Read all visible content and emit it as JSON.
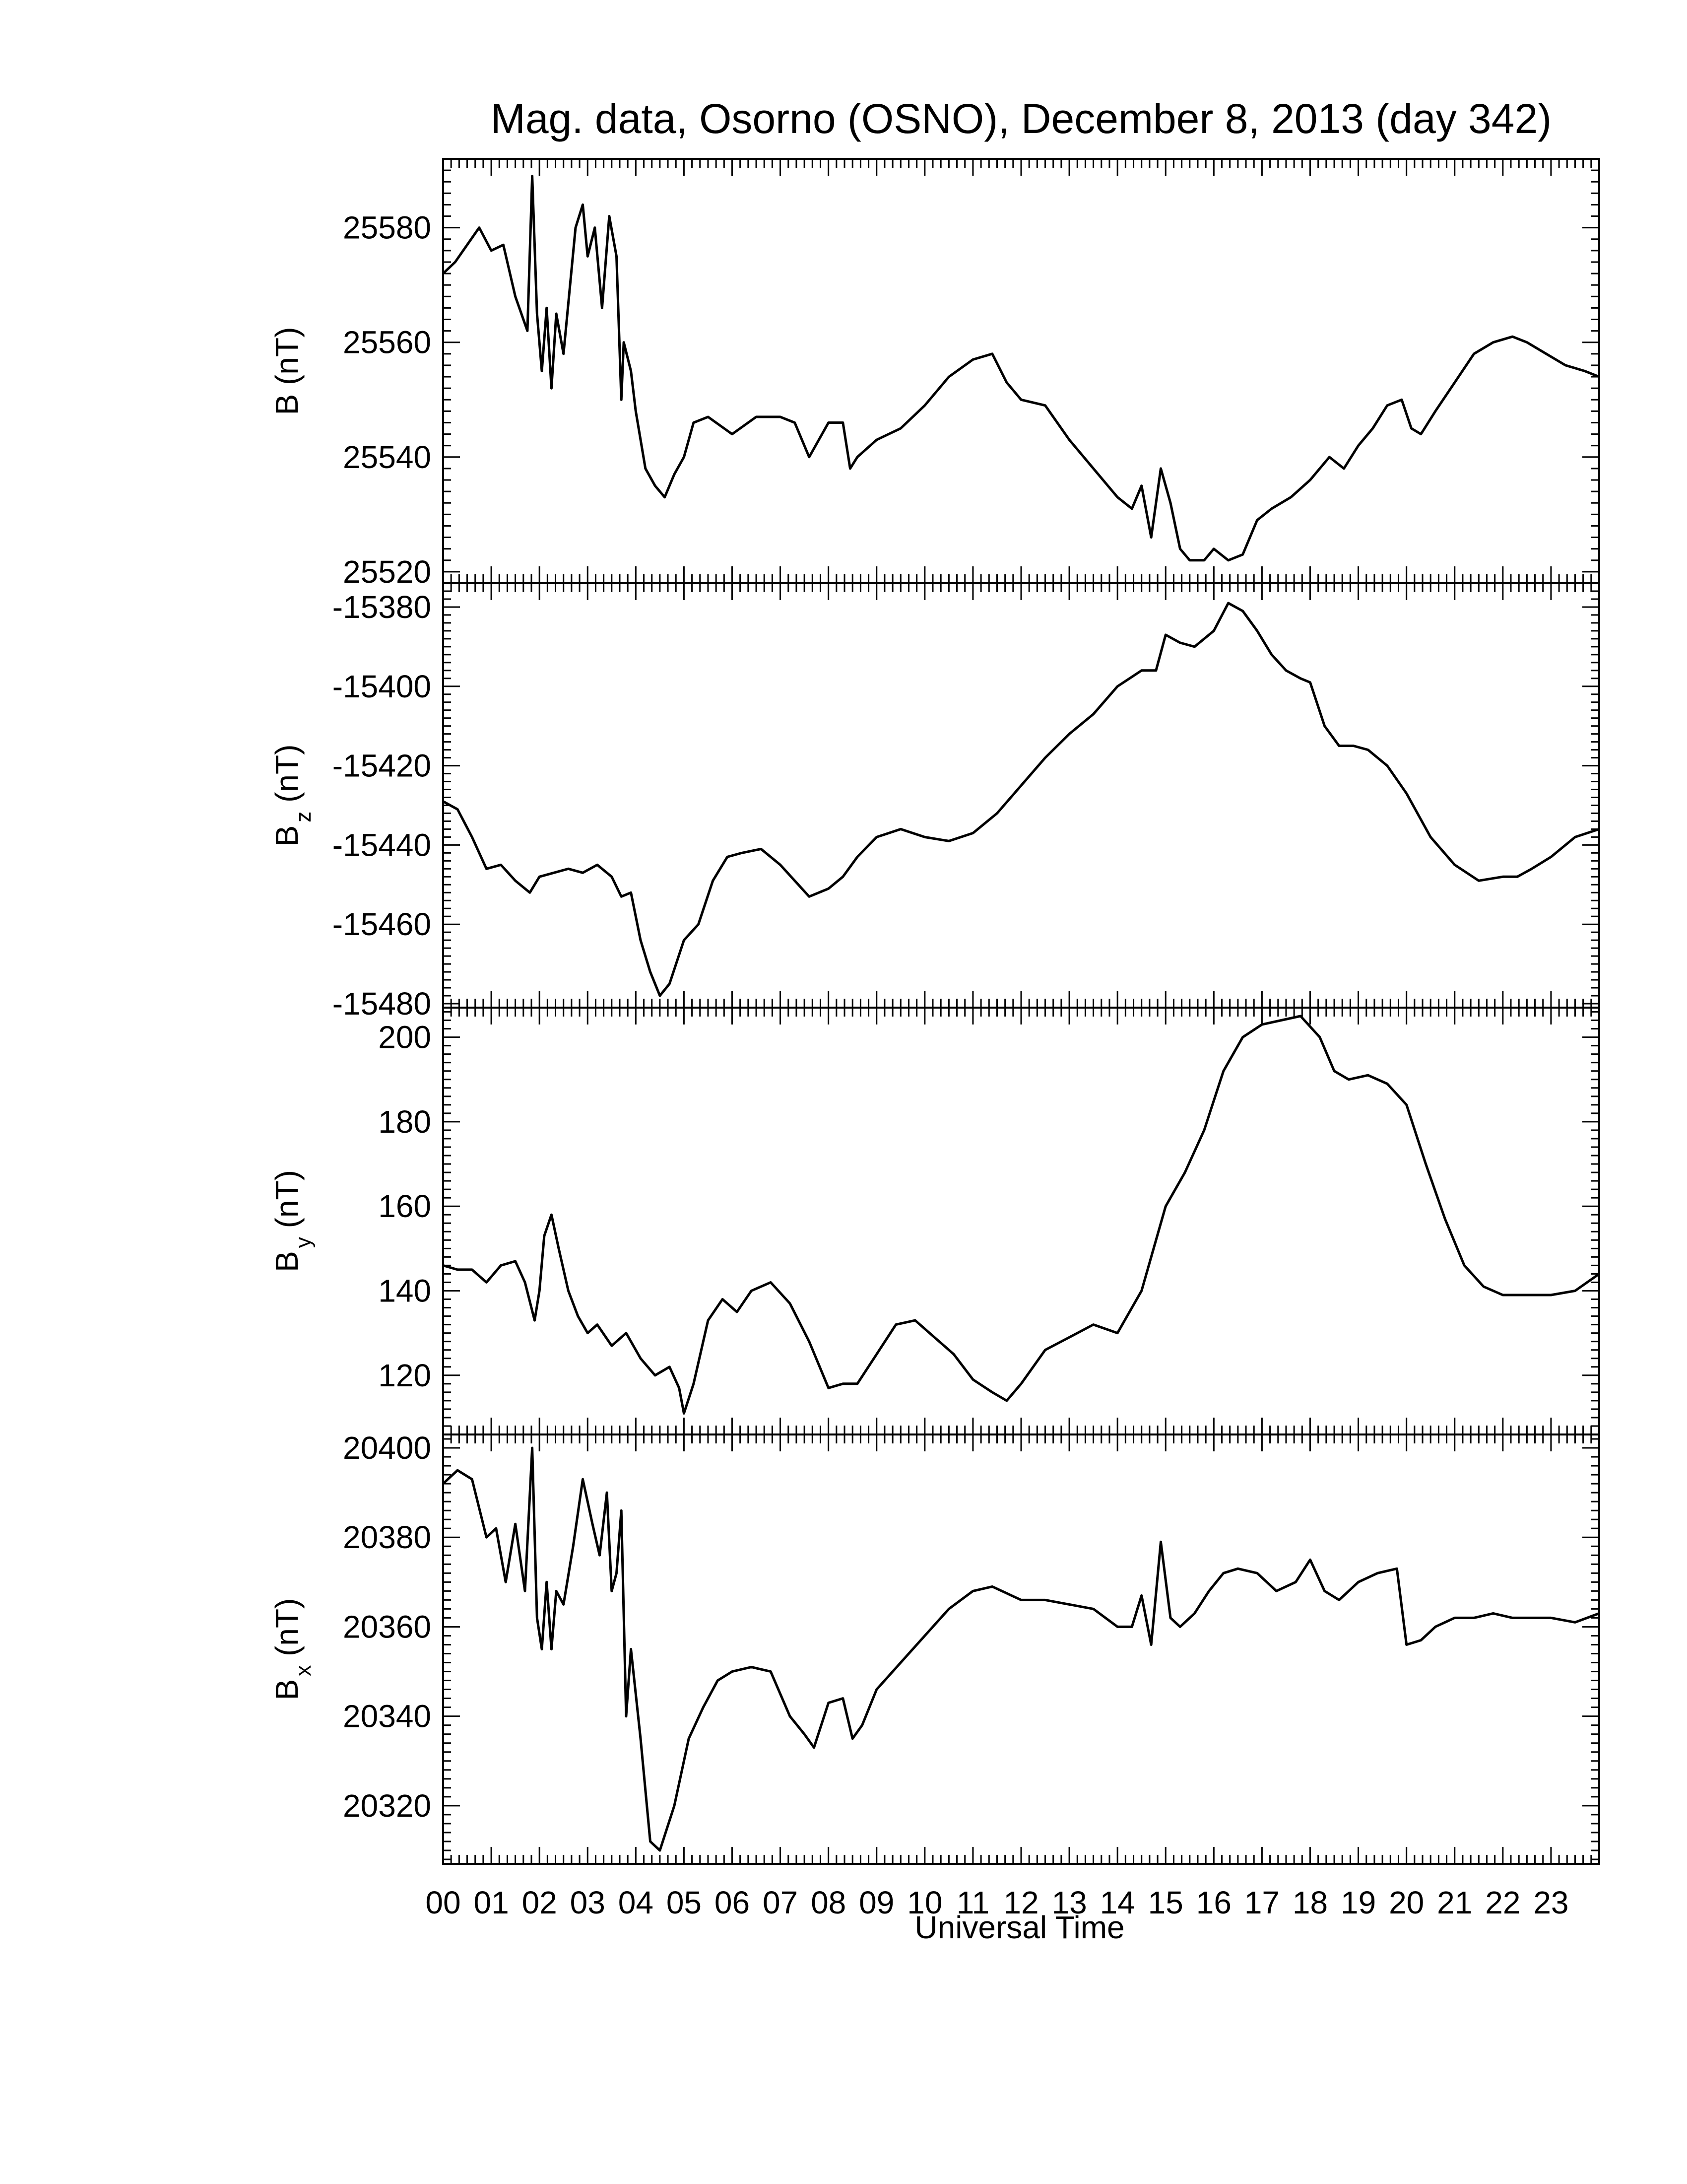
{
  "title": "Mag. data, Osorno (OSNO), December 8, 2013 (day 342)",
  "xaxis": {
    "label": "Universal Time",
    "tick_labels": [
      "00",
      "01",
      "02",
      "03",
      "04",
      "05",
      "06",
      "07",
      "08",
      "09",
      "10",
      "11",
      "12",
      "13",
      "14",
      "15",
      "16",
      "17",
      "18",
      "19",
      "20",
      "21",
      "22",
      "23"
    ]
  },
  "chart_data": [
    {
      "type": "line",
      "panel": "B",
      "ylabel_main": "B (nT)",
      "ylabel_sub": "",
      "ylim": [
        25518,
        25592
      ],
      "yticks": [
        25520,
        25540,
        25560,
        25580
      ],
      "x_unit": "hours UT",
      "xlim": [
        0,
        24
      ],
      "x": [
        0,
        0.25,
        0.5,
        0.75,
        1.0,
        1.25,
        1.5,
        1.75,
        1.85,
        1.95,
        2.05,
        2.15,
        2.25,
        2.35,
        2.5,
        2.75,
        2.9,
        3.0,
        3.15,
        3.3,
        3.45,
        3.6,
        3.7,
        3.75,
        3.9,
        4.0,
        4.2,
        4.4,
        4.6,
        4.8,
        5.0,
        5.2,
        5.5,
        6.0,
        6.5,
        7.0,
        7.3,
        7.6,
        8.0,
        8.3,
        8.45,
        8.6,
        9.0,
        9.5,
        10.0,
        10.5,
        11.0,
        11.4,
        11.7,
        12.0,
        12.5,
        13.0,
        13.5,
        14.0,
        14.3,
        14.5,
        14.7,
        14.9,
        15.1,
        15.3,
        15.5,
        15.8,
        16.0,
        16.3,
        16.6,
        16.9,
        17.2,
        17.6,
        18.0,
        18.4,
        18.7,
        19.0,
        19.3,
        19.6,
        19.9,
        20.1,
        20.3,
        20.6,
        21.0,
        21.4,
        21.8,
        22.2,
        22.5,
        22.9,
        23.3,
        23.7,
        24.0
      ],
      "y": [
        25572,
        25574,
        25577,
        25580,
        25576,
        25577,
        25568,
        25562,
        25589,
        25565,
        25555,
        25566,
        25552,
        25565,
        25558,
        25580,
        25584,
        25575,
        25580,
        25566,
        25582,
        25575,
        25550,
        25560,
        25555,
        25548,
        25538,
        25535,
        25533,
        25537,
        25540,
        25546,
        25547,
        25544,
        25547,
        25547,
        25546,
        25540,
        25546,
        25546,
        25538,
        25540,
        25543,
        25545,
        25549,
        25554,
        25557,
        25558,
        25553,
        25550,
        25549,
        25543,
        25538,
        25533,
        25531,
        25535,
        25526,
        25538,
        25532,
        25524,
        25522,
        25522,
        25524,
        25522,
        25523,
        25529,
        25531,
        25533,
        25536,
        25540,
        25538,
        25542,
        25545,
        25549,
        25550,
        25545,
        25544,
        25548,
        25553,
        25558,
        25560,
        25561,
        25560,
        25558,
        25556,
        25555,
        25554
      ]
    },
    {
      "type": "line",
      "panel": "Bz",
      "ylabel_main": "B",
      "ylabel_sub": "z",
      "ylabel_tail": " (nT)",
      "ylim": [
        -15481,
        -15374
      ],
      "yticks": [
        -15480,
        -15460,
        -15440,
        -15420,
        -15400,
        -15380
      ],
      "x_unit": "hours UT",
      "xlim": [
        0,
        24
      ],
      "x": [
        0,
        0.3,
        0.6,
        0.9,
        1.2,
        1.5,
        1.8,
        2.0,
        2.3,
        2.6,
        2.9,
        3.2,
        3.5,
        3.7,
        3.9,
        4.1,
        4.3,
        4.5,
        4.7,
        5.0,
        5.3,
        5.6,
        5.9,
        6.2,
        6.6,
        7.0,
        7.3,
        7.6,
        7.8,
        8.0,
        8.3,
        8.6,
        9.0,
        9.5,
        10.0,
        10.5,
        11.0,
        11.5,
        12.0,
        12.5,
        13.0,
        13.5,
        14.0,
        14.5,
        14.8,
        15.0,
        15.3,
        15.6,
        16.0,
        16.3,
        16.6,
        16.9,
        17.2,
        17.5,
        17.8,
        18.0,
        18.3,
        18.6,
        18.9,
        19.2,
        19.6,
        20.0,
        20.5,
        21.0,
        21.5,
        22.0,
        22.3,
        22.6,
        23.0,
        23.5,
        24.0
      ],
      "y": [
        -15429,
        -15431,
        -15438,
        -15446,
        -15445,
        -15449,
        -15452,
        -15448,
        -15447,
        -15446,
        -15447,
        -15445,
        -15448,
        -15453,
        -15452,
        -15464,
        -15472,
        -15478,
        -15475,
        -15464,
        -15460,
        -15449,
        -15443,
        -15442,
        -15441,
        -15445,
        -15449,
        -15453,
        -15452,
        -15451,
        -15448,
        -15443,
        -15438,
        -15436,
        -15438,
        -15439,
        -15437,
        -15432,
        -15425,
        -15418,
        -15412,
        -15407,
        -15400,
        -15396,
        -15396,
        -15387,
        -15389,
        -15390,
        -15386,
        -15379,
        -15381,
        -15386,
        -15392,
        -15396,
        -15398,
        -15399,
        -15410,
        -15415,
        -15415,
        -15416,
        -15420,
        -15427,
        -15438,
        -15445,
        -15449,
        -15448,
        -15448,
        -15446,
        -15443,
        -15438,
        -15436
      ]
    },
    {
      "type": "line",
      "panel": "By",
      "ylabel_main": "B",
      "ylabel_sub": "y",
      "ylabel_tail": " (nT)",
      "ylim": [
        106,
        207
      ],
      "yticks": [
        120,
        140,
        160,
        180,
        200
      ],
      "x_unit": "hours UT",
      "xlim": [
        0,
        24
      ],
      "x": [
        0,
        0.3,
        0.6,
        0.9,
        1.2,
        1.5,
        1.7,
        1.9,
        2.0,
        2.1,
        2.25,
        2.4,
        2.6,
        2.8,
        3.0,
        3.2,
        3.5,
        3.8,
        4.1,
        4.4,
        4.7,
        4.9,
        5.0,
        5.2,
        5.5,
        5.8,
        6.1,
        6.4,
        6.8,
        7.2,
        7.6,
        8.0,
        8.3,
        8.6,
        9.0,
        9.4,
        9.8,
        10.2,
        10.6,
        11.0,
        11.4,
        11.7,
        12.0,
        12.5,
        13.0,
        13.5,
        14.0,
        14.5,
        15.0,
        15.4,
        15.8,
        16.2,
        16.6,
        17.0,
        17.4,
        17.8,
        18.2,
        18.5,
        18.8,
        19.2,
        19.6,
        20.0,
        20.4,
        20.8,
        21.2,
        21.6,
        22.0,
        22.5,
        23.0,
        23.5,
        24.0
      ],
      "y": [
        146,
        145,
        145,
        142,
        146,
        147,
        142,
        133,
        140,
        153,
        158,
        150,
        140,
        134,
        130,
        132,
        127,
        130,
        124,
        120,
        122,
        117,
        111,
        118,
        133,
        138,
        135,
        140,
        142,
        137,
        128,
        117,
        118,
        118,
        125,
        132,
        133,
        129,
        125,
        119,
        116,
        114,
        118,
        126,
        129,
        132,
        130,
        140,
        160,
        168,
        178,
        192,
        200,
        203,
        204,
        205,
        200,
        192,
        190,
        191,
        189,
        184,
        170,
        157,
        146,
        141,
        139,
        139,
        139,
        140,
        144
      ]
    },
    {
      "type": "line",
      "panel": "Bx",
      "ylabel_main": "B",
      "ylabel_sub": "x",
      "ylabel_tail": " (nT)",
      "ylim": [
        20307,
        20403
      ],
      "yticks": [
        20320,
        20340,
        20360,
        20380,
        20400
      ],
      "x_unit": "hours UT",
      "xlim": [
        0,
        24
      ],
      "x": [
        0,
        0.3,
        0.6,
        0.9,
        1.1,
        1.3,
        1.5,
        1.7,
        1.85,
        1.95,
        2.05,
        2.15,
        2.25,
        2.35,
        2.5,
        2.7,
        2.9,
        3.1,
        3.25,
        3.4,
        3.5,
        3.6,
        3.7,
        3.8,
        3.9,
        4.1,
        4.3,
        4.5,
        4.8,
        5.1,
        5.4,
        5.7,
        6.0,
        6.4,
        6.8,
        7.2,
        7.5,
        7.7,
        8.0,
        8.3,
        8.5,
        8.7,
        9.0,
        9.5,
        10.0,
        10.5,
        11.0,
        11.4,
        12.0,
        12.5,
        13.0,
        13.5,
        14.0,
        14.3,
        14.5,
        14.7,
        14.9,
        15.1,
        15.3,
        15.6,
        15.9,
        16.2,
        16.5,
        16.9,
        17.3,
        17.7,
        18.0,
        18.3,
        18.6,
        19.0,
        19.4,
        19.8,
        20.0,
        20.3,
        20.6,
        21.0,
        21.4,
        21.8,
        22.2,
        22.6,
        23.0,
        23.5,
        24.0
      ],
      "y": [
        20392,
        20395,
        20393,
        20380,
        20382,
        20370,
        20383,
        20368,
        20400,
        20362,
        20355,
        20370,
        20355,
        20368,
        20365,
        20378,
        20393,
        20383,
        20376,
        20390,
        20368,
        20372,
        20386,
        20340,
        20355,
        20335,
        20312,
        20310,
        20320,
        20335,
        20342,
        20348,
        20350,
        20351,
        20350,
        20340,
        20336,
        20333,
        20343,
        20344,
        20335,
        20338,
        20346,
        20352,
        20358,
        20364,
        20368,
        20369,
        20366,
        20366,
        20365,
        20364,
        20360,
        20360,
        20367,
        20356,
        20379,
        20362,
        20360,
        20363,
        20368,
        20372,
        20373,
        20372,
        20368,
        20370,
        20375,
        20368,
        20366,
        20370,
        20372,
        20373,
        20356,
        20357,
        20360,
        20362,
        20362,
        20363,
        20362,
        20362,
        20362,
        20361,
        20363
      ]
    }
  ]
}
